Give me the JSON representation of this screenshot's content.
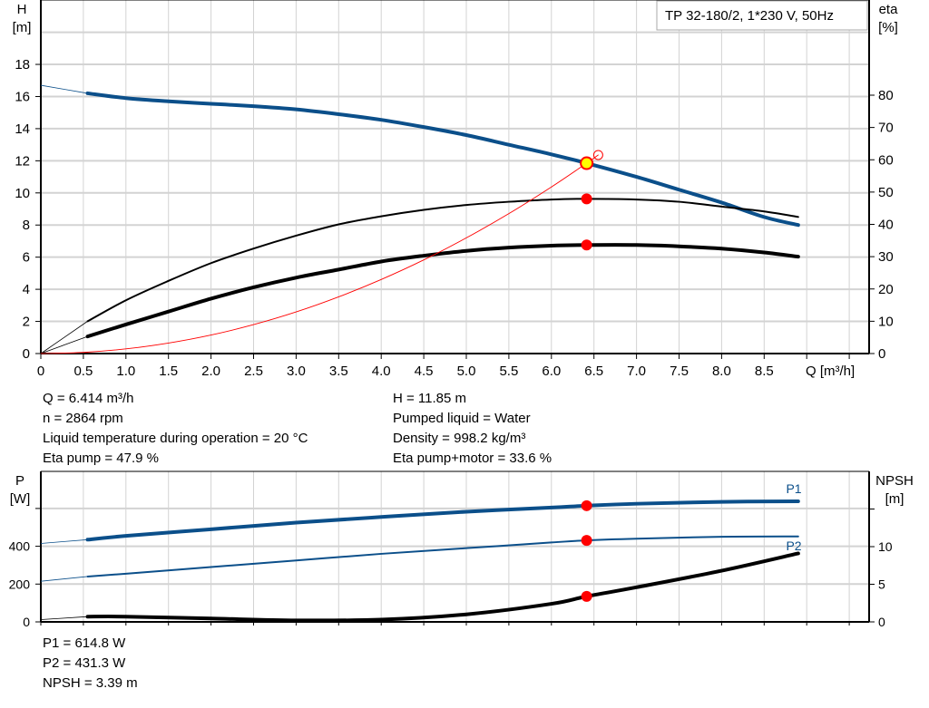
{
  "legend_box": "TP 32-180/2, 1*230 V, 50Hz",
  "operating_point": {
    "left": [
      "Q = 6.414 m³/h",
      "n = 2864 rpm",
      "Liquid temperature during operation = 20 °C",
      "Eta pump = 47.9 %"
    ],
    "right": [
      "H = 11.85 m",
      "Pumped liquid = Water",
      "Density = 998.2 kg/m³",
      "Eta pump+motor = 33.6 %"
    ],
    "power": [
      "P1 = 614.8 W",
      "P2 = 431.3 W",
      "NPSH = 3.39 m"
    ]
  },
  "colors": {
    "head": "#0b4f8a",
    "power": "#0b4f8a",
    "efficiency": "#000000",
    "npsh": "#000000",
    "system": "#ff0000",
    "point": "#ff0000",
    "duty_point": "#ffff00",
    "grid": "#d3d3d3"
  },
  "chart_data": [
    {
      "type": "line",
      "xlabel": "Q [m³/h]",
      "ylabel_left": [
        "H",
        "[m]"
      ],
      "ylabel_right": [
        "eta",
        "[%]"
      ],
      "xlim": [
        0,
        9.73
      ],
      "ylim_left": [
        0,
        22
      ],
      "ylim_right": [
        0,
        110
      ],
      "xticks": [
        "0",
        "0.5",
        "1.0",
        "1.5",
        "2.0",
        "2.5",
        "3.0",
        "3.5",
        "4.0",
        "4.5",
        "5.0",
        "5.5",
        "6.0",
        "6.5",
        "7.0",
        "7.5",
        "8.0",
        "8.5"
      ],
      "yticks_left": [
        "0",
        "2",
        "4",
        "6",
        "8",
        "10",
        "12",
        "14",
        "16",
        "18"
      ],
      "yticks_right": [
        "0",
        "10",
        "20",
        "30",
        "40",
        "50",
        "60",
        "70",
        "80"
      ],
      "grid": true,
      "series": [
        {
          "axis": "left",
          "x": [
            0.55,
            1.0,
            1.5,
            2.0,
            2.5,
            3.0,
            3.5,
            4.0,
            4.5,
            5.0,
            5.5,
            6.0,
            6.414,
            7.0,
            7.5,
            8.0,
            8.5,
            8.9
          ],
          "y": [
            16.2,
            15.9,
            15.7,
            15.55,
            15.4,
            15.2,
            14.9,
            14.55,
            14.1,
            13.6,
            13.0,
            12.4,
            11.85,
            11.0,
            10.2,
            9.4,
            8.5,
            8.0
          ],
          "extension": {
            "x": [
              0,
              0.55
            ],
            "y": [
              16.7,
              16.2
            ]
          }
        },
        {
          "axis": "right",
          "x": [
            0.55,
            1.0,
            1.5,
            2.0,
            2.5,
            3.0,
            3.5,
            4.0,
            4.5,
            5.0,
            5.5,
            6.0,
            6.414,
            7.0,
            7.5,
            8.0,
            8.5,
            8.9
          ],
          "y": [
            10,
            16.5,
            22.5,
            28,
            32.5,
            36.5,
            40,
            42.5,
            44.5,
            46,
            47,
            47.7,
            47.9,
            47.7,
            47,
            45.5,
            44,
            42.3
          ],
          "extension": {
            "x": [
              0,
              0.55
            ],
            "y": [
              0,
              10
            ]
          }
        },
        {
          "axis": "right",
          "x": [
            0.55,
            1.0,
            1.5,
            2.0,
            2.5,
            3.0,
            3.5,
            4.0,
            4.5,
            5.0,
            5.5,
            6.0,
            6.414,
            7.0,
            7.5,
            8.0,
            8.5,
            8.9
          ],
          "y": [
            5.3,
            9,
            13,
            17,
            20.5,
            23.5,
            26,
            28.5,
            30.3,
            31.8,
            32.8,
            33.4,
            33.6,
            33.6,
            33.2,
            32.5,
            31.3,
            30
          ],
          "extension": {
            "x": [
              0,
              0.55
            ],
            "y": [
              0,
              5.3
            ]
          }
        },
        {
          "axis": "left",
          "kind": "system",
          "x": [
            0,
            0.5,
            1,
            1.5,
            2,
            2.5,
            3,
            3.5,
            4,
            4.5,
            5,
            5.5,
            6,
            6.414,
            6.55
          ],
          "y": [
            0,
            0.07,
            0.29,
            0.65,
            1.15,
            1.8,
            2.59,
            3.53,
            4.61,
            5.83,
            7.2,
            8.71,
            10.37,
            11.85,
            12.36
          ]
        }
      ],
      "points": [
        {
          "x": 6.414,
          "y": 11.85,
          "axis": "left",
          "kind": "duty"
        },
        {
          "x": 6.414,
          "y": 47.9,
          "axis": "right"
        },
        {
          "x": 6.414,
          "y": 33.6,
          "axis": "right"
        },
        {
          "x": 6.55,
          "y": 12.36,
          "axis": "left",
          "kind": "open"
        }
      ]
    },
    {
      "type": "line",
      "ylabel_left": [
        "P",
        "[W]"
      ],
      "ylabel_right": [
        "NPSH",
        "[m]"
      ],
      "xlim": [
        0,
        9.73
      ],
      "ylim_left": [
        0,
        796
      ],
      "ylim_right": [
        0,
        20
      ],
      "yticks_left": [
        "0",
        "200",
        "400"
      ],
      "yticks_right": [
        "0",
        "5",
        "10"
      ],
      "grid": true,
      "series": [
        {
          "name": "P1",
          "axis": "left",
          "x": [
            0.55,
            1,
            2,
            3,
            4,
            5,
            6,
            6.414,
            7,
            8,
            8.9
          ],
          "y": [
            435,
            455,
            490,
            525,
            555,
            583,
            605,
            614.8,
            625,
            635,
            638
          ],
          "extension": {
            "x": [
              0,
              0.55
            ],
            "y": [
              415,
              435
            ]
          }
        },
        {
          "name": "P2",
          "axis": "left",
          "x": [
            0.55,
            1,
            2,
            3,
            4,
            5,
            6,
            6.414,
            7,
            8,
            8.9
          ],
          "y": [
            240,
            255,
            290,
            325,
            360,
            390,
            420,
            431.3,
            440,
            450,
            452
          ],
          "extension": {
            "x": [
              0,
              0.55
            ],
            "y": [
              215,
              240
            ]
          }
        },
        {
          "axis": "right",
          "x": [
            0.55,
            1,
            2,
            3,
            4,
            5,
            6,
            6.414,
            7,
            8,
            8.9
          ],
          "y": [
            0.7,
            0.7,
            0.45,
            0.2,
            0.3,
            1.0,
            2.4,
            3.39,
            4.6,
            6.8,
            9.1
          ],
          "extension": {
            "x": [
              0,
              0.55
            ],
            "y": [
              0.3,
              0.7
            ]
          }
        }
      ],
      "points": [
        {
          "x": 6.414,
          "y": 614.8,
          "axis": "left"
        },
        {
          "x": 6.414,
          "y": 431.3,
          "axis": "left"
        },
        {
          "x": 6.414,
          "y": 3.39,
          "axis": "right"
        }
      ]
    }
  ]
}
